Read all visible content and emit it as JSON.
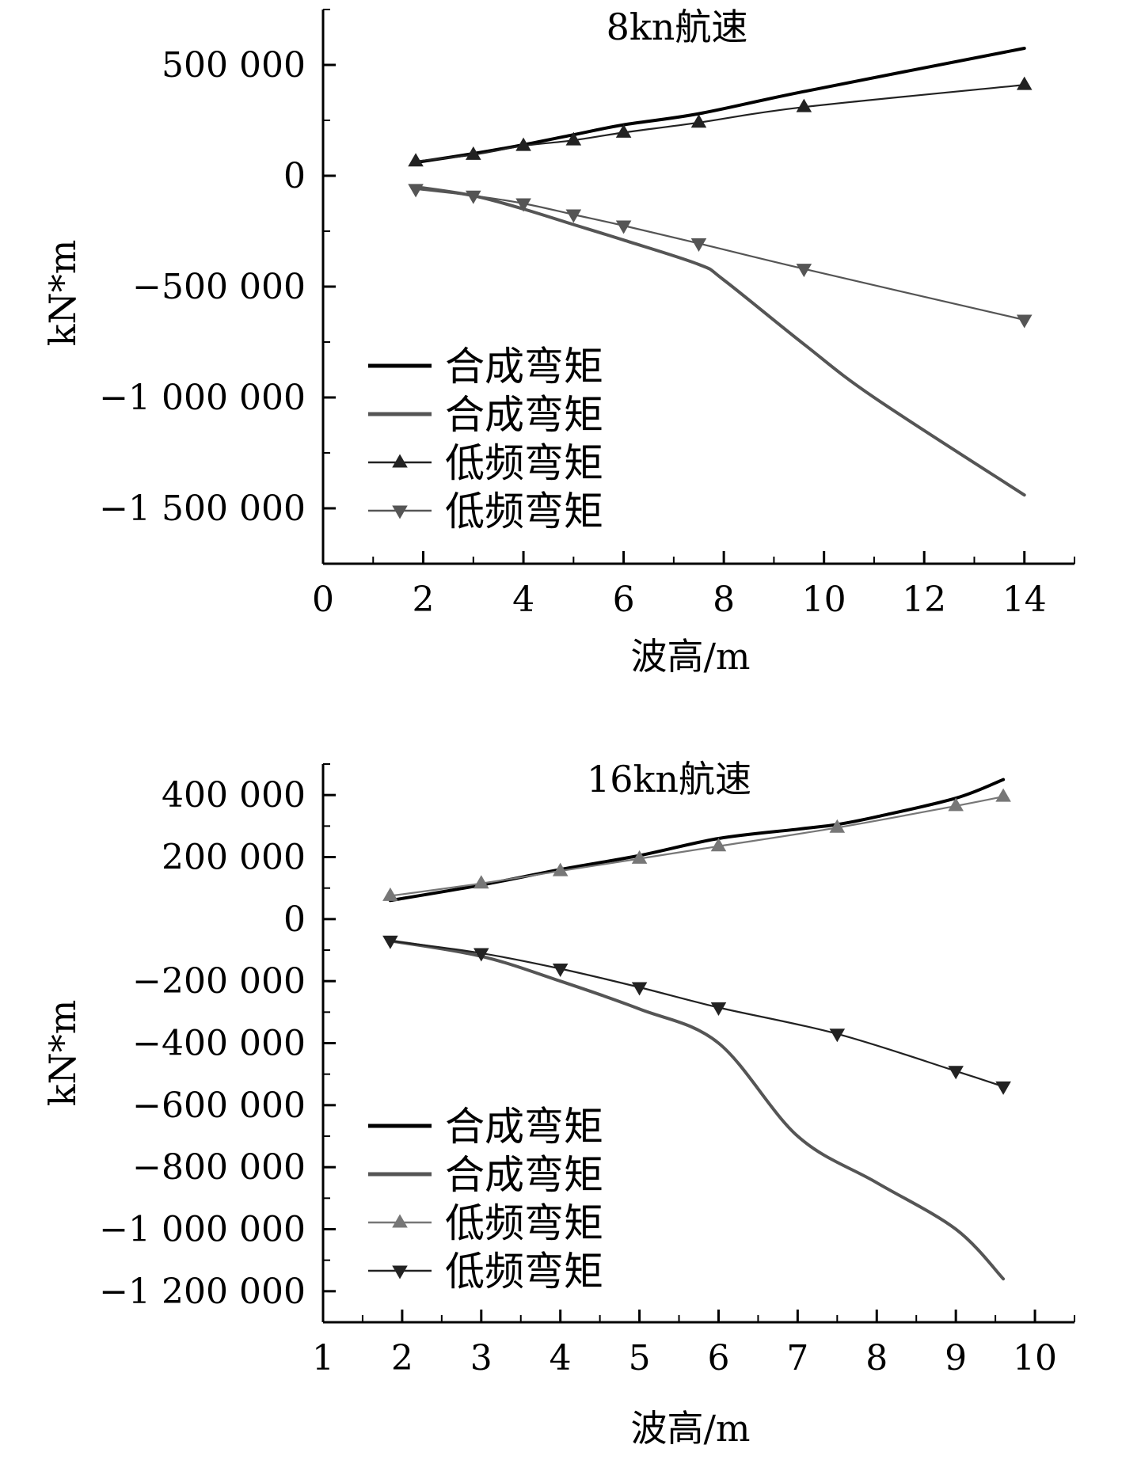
{
  "chart_data": [
    {
      "type": "line",
      "title": "8kn航速",
      "xlabel": "波高/m",
      "ylabel": "kN*m",
      "xlim": [
        0,
        15
      ],
      "ylim": [
        -1750000,
        750000
      ],
      "xticks": [
        0,
        2,
        4,
        6,
        8,
        10,
        12,
        14
      ],
      "xtick_labels": [
        "0",
        "2",
        "4",
        "6",
        "8",
        "10",
        "12",
        "14"
      ],
      "yticks": [
        500000,
        0,
        -500000,
        -1000000,
        -1500000
      ],
      "ytick_labels": [
        "500 000",
        "0",
        "−500 000",
        "−1 000 000",
        "−1 500 000"
      ],
      "legend_position": "lower-left",
      "grid": false,
      "series": [
        {
          "name": "合成弯矩",
          "color": "#000000",
          "marker": "none",
          "x": [
            1.85,
            3,
            4,
            5,
            6,
            7.5,
            9.6,
            14
          ],
          "y": [
            60000,
            100000,
            140000,
            185000,
            230000,
            280000,
            380000,
            575000
          ]
        },
        {
          "name": "合成弯矩",
          "color": "#555555",
          "marker": "none",
          "x": [
            1.85,
            3,
            4,
            5,
            6,
            7.5,
            8,
            9.6,
            11,
            14
          ],
          "y": [
            -50000,
            -90000,
            -150000,
            -220000,
            -290000,
            -400000,
            -470000,
            -760000,
            -1000000,
            -1440000
          ]
        },
        {
          "name": "低频弯矩",
          "color": "#222222",
          "marker": "triangle-up",
          "x": [
            1.85,
            3,
            4,
            5,
            6,
            7.5,
            9.6,
            14
          ],
          "y": [
            65000,
            95000,
            135000,
            160000,
            195000,
            240000,
            310000,
            410000
          ]
        },
        {
          "name": "低频弯矩",
          "color": "#555555",
          "marker": "triangle-down",
          "x": [
            1.85,
            3,
            4,
            5,
            6,
            7.5,
            9.6,
            14
          ],
          "y": [
            -60000,
            -90000,
            -125000,
            -175000,
            -225000,
            -305000,
            -420000,
            -650000
          ]
        }
      ]
    },
    {
      "type": "line",
      "title": "16kn航速",
      "xlabel": "波高/m",
      "ylabel": "kN*m",
      "xlim": [
        1,
        10.5
      ],
      "ylim": [
        -1300000,
        500000
      ],
      "xticks": [
        1,
        2,
        3,
        4,
        5,
        6,
        7,
        8,
        9,
        10
      ],
      "xtick_labels": [
        "1",
        "2",
        "3",
        "4",
        "5",
        "6",
        "7",
        "8",
        "9",
        "10"
      ],
      "yticks": [
        400000,
        200000,
        0,
        -200000,
        -400000,
        -600000,
        -800000,
        -1000000,
        -1200000
      ],
      "ytick_labels": [
        "400 000",
        "200 000",
        "0",
        "−200 000",
        "−400 000",
        "−600 000",
        "−800 000",
        "−1 000 000",
        "−1 200 000"
      ],
      "legend_position": "lower-left",
      "grid": false,
      "series": [
        {
          "name": "合成弯矩",
          "color": "#000000",
          "marker": "none",
          "x": [
            1.85,
            3,
            4,
            5,
            6,
            7,
            7.5,
            8,
            9,
            9.6
          ],
          "y": [
            60000,
            110000,
            160000,
            205000,
            260000,
            290000,
            305000,
            330000,
            390000,
            450000
          ]
        },
        {
          "name": "合成弯矩",
          "color": "#555555",
          "marker": "none",
          "x": [
            1.85,
            3,
            4,
            5,
            6,
            7,
            8,
            9,
            9.6
          ],
          "y": [
            -70000,
            -120000,
            -200000,
            -290000,
            -400000,
            -700000,
            -850000,
            -1000000,
            -1160000
          ]
        },
        {
          "name": "低频弯矩",
          "color": "#777777",
          "marker": "triangle-up",
          "x": [
            1.85,
            3,
            4,
            5,
            6,
            7.5,
            9,
            9.6
          ],
          "y": [
            75000,
            115000,
            155000,
            195000,
            235000,
            295000,
            365000,
            395000
          ]
        },
        {
          "name": "低频弯矩",
          "color": "#222222",
          "marker": "triangle-down",
          "x": [
            1.85,
            3,
            4,
            5,
            6,
            7.5,
            9,
            9.6
          ],
          "y": [
            -70000,
            -110000,
            -160000,
            -220000,
            -285000,
            -370000,
            -490000,
            -540000
          ]
        }
      ]
    }
  ]
}
